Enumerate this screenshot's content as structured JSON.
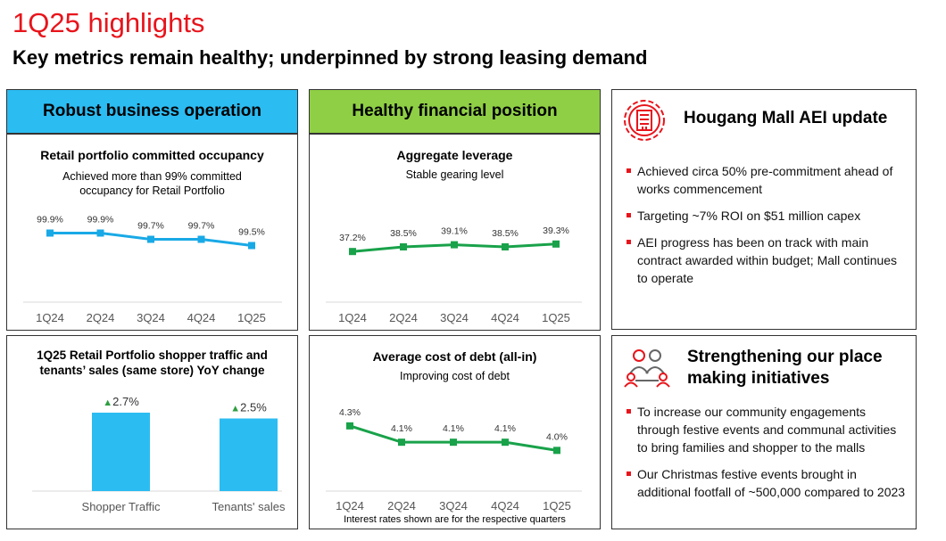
{
  "title": "1Q25 highlights",
  "subtitle": "Key metrics remain healthy; underpinned by strong leasing demand",
  "colors": {
    "accent_red": "#e8141b",
    "blue": "#2bbcf2",
    "green": "#8fcf45",
    "line_blue": "#19a9e6",
    "line_green": "#19a24a",
    "up_arrow": "#2f9e41"
  },
  "sections": {
    "business": {
      "header": "Robust business operation"
    },
    "financial": {
      "header": "Healthy financial position"
    }
  },
  "occupancy": {
    "title": "Retail portfolio committed occupancy",
    "note_line1": "Achieved more than 99% committed",
    "note_line2": "occupancy for Retail Portfolio"
  },
  "leverage": {
    "title": "Aggregate leverage",
    "note": "Stable gearing level"
  },
  "traffic": {
    "title_line1": "1Q25 Retail Portfolio shopper traffic and",
    "title_line2": "tenants’ sales (same store) YoY change"
  },
  "debt": {
    "title": "Average cost of debt (all-in)",
    "note": "Improving cost of debt",
    "footnote": "Interest rates shown are for the respective quarters"
  },
  "aei": {
    "icon": "building-gear-icon",
    "title": "Hougang Mall AEI update",
    "bullets": [
      "Achieved circa 50% pre-commitment ahead of works commencement",
      "Targeting ~7% ROI on $51 million capex",
      "AEI progress has been on track with main contract awarded within budget; Mall continues to operate"
    ]
  },
  "placemaking": {
    "icon": "people-network-icon",
    "title_line1": "Strengthening our place",
    "title_line2": "making initiatives",
    "bullets": [
      "To increase our community engagements through festive events and communal activities to bring families and shopper to the malls",
      "Our Christmas festive events brought in additional footfall of ~500,000 compared to 2023"
    ]
  },
  "chart_data": [
    {
      "id": "occupancy",
      "type": "line",
      "categories": [
        "1Q24",
        "2Q24",
        "3Q24",
        "4Q24",
        "1Q25"
      ],
      "series": [
        {
          "values": [
            99.9,
            99.9,
            99.7,
            99.7,
            99.5
          ]
        }
      ],
      "labels": [
        "99.9%",
        "99.9%",
        "99.7%",
        "99.7%",
        "99.5%"
      ],
      "color": "#19a9e6",
      "marker": "square"
    },
    {
      "id": "leverage",
      "type": "line",
      "categories": [
        "1Q24",
        "2Q24",
        "3Q24",
        "4Q24",
        "1Q25"
      ],
      "series": [
        {
          "values": [
            37.2,
            38.5,
            39.1,
            38.5,
            39.3
          ]
        }
      ],
      "labels": [
        "37.2%",
        "38.5%",
        "39.1%",
        "38.5%",
        "39.3%"
      ],
      "color": "#19a24a",
      "marker": "square"
    },
    {
      "id": "traffic",
      "type": "bar",
      "categories": [
        "Shopper Traffic",
        "Tenants' sales"
      ],
      "values": [
        2.7,
        2.5
      ],
      "labels": [
        "2.7%",
        "2.5%"
      ],
      "up_arrow": "▲",
      "color": "#2bbcf2"
    },
    {
      "id": "debt",
      "type": "line",
      "categories": [
        "1Q24",
        "2Q24",
        "3Q24",
        "4Q24",
        "1Q25"
      ],
      "series": [
        {
          "values": [
            4.3,
            4.1,
            4.1,
            4.1,
            4.0
          ]
        }
      ],
      "labels": [
        "4.3%",
        "4.1%",
        "4.1%",
        "4.1%",
        "4.0%"
      ],
      "color": "#19a24a",
      "marker": "square"
    }
  ]
}
